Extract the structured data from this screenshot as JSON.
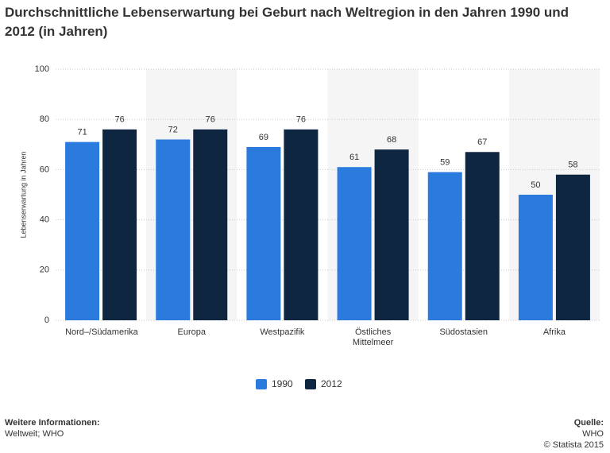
{
  "chart_data": {
    "type": "bar",
    "title": "Durchschnittliche Lebenserwartung bei Geburt nach Weltregion in den Jahren 1990 und 2012 (in Jahren)",
    "y_label": "Lebenserwartung in Jahren",
    "categories": [
      "Nord–/Südamerika",
      "Europa",
      "Westpazifik",
      "Östliches Mittelmeer",
      "Südostasien",
      "Afrika"
    ],
    "series": [
      {
        "name": "1990",
        "color": "#2b7bdf",
        "values": [
          71,
          72,
          69,
          61,
          59,
          50
        ]
      },
      {
        "name": "2012",
        "color": "#0f2640",
        "values": [
          76,
          76,
          76,
          68,
          67,
          58
        ]
      }
    ],
    "ylim": [
      0,
      100
    ],
    "yticks": [
      0,
      20,
      40,
      60,
      80,
      100
    ],
    "grid": true
  },
  "footer": {
    "info_title": "Weitere Informationen:",
    "info_text": "Weltweit; WHO",
    "source_title": "Quelle:",
    "source_text": "WHO",
    "copyright": "© Statista 2015"
  }
}
